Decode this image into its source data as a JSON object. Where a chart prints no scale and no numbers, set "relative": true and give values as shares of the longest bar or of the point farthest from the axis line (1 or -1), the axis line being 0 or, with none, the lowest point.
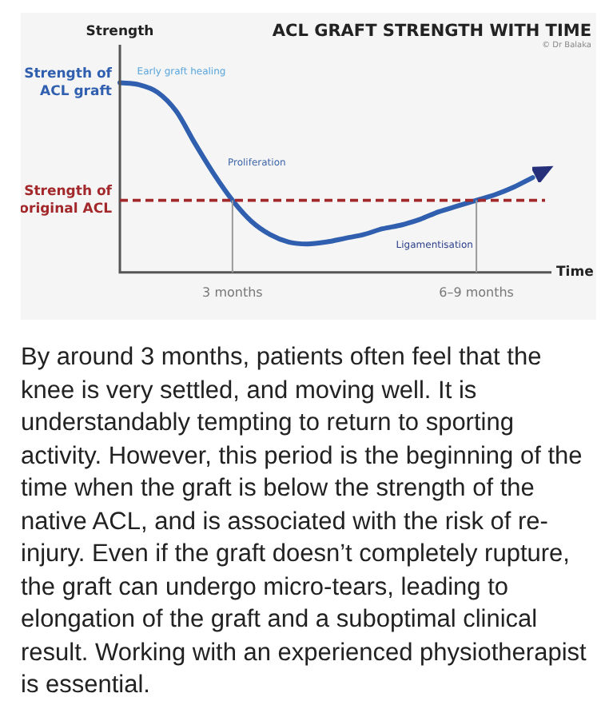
{
  "chart_data": {
    "type": "line",
    "title": "ACL GRAFT STRENGTH WITH TIME",
    "xlabel": "Time",
    "ylabel": "Strength",
    "relative": true,
    "tick_labels": "x",
    "legend": false,
    "grid": false,
    "marker": "none",
    "line_style": "solid",
    "categories": [
      null,
      null,
      null,
      null,
      null,
      null,
      "3 months",
      null,
      null,
      null,
      null,
      null,
      null,
      null,
      null,
      null,
      null,
      null,
      null,
      "6–9 months",
      null,
      null,
      null,
      null
    ],
    "series": [
      {
        "color": "#2f5fae",
        "values": [
          1.0,
          0.99,
          0.95,
          0.85,
          0.68,
          0.52,
          0.38,
          0.27,
          0.2,
          0.16,
          0.15,
          0.16,
          0.18,
          0.2,
          0.23,
          0.25,
          0.28,
          0.32,
          0.35,
          0.38,
          0.41,
          0.45,
          0.5,
          null
        ]
      }
    ],
    "ref_lines": [
      {
        "axis": "y",
        "value": 0.38,
        "label": "Strength of original ACL",
        "color": "#a3282b",
        "line_style": "dashed"
      },
      {
        "axis": "x",
        "value": "3 months",
        "color": "#9a9a9a"
      },
      {
        "axis": "x",
        "value": "6–9 months",
        "color": "#9a9a9a"
      }
    ],
    "annotations": [
      "Strength of ACL graft",
      "© Dr Balaka",
      "Early graft healing",
      "Proliferation",
      "Ligamentisation",
      "By around 3 months, patients often feel that the knee is very settled, and moving well. It is understandably tempting to return to sporting activity. However, this period is the beginning of the time when the graft is below the strength of the native ACL, and is associated with the risk of re-injury. Even if the graft doesn’t completely rupture, the graft can undergo micro-tears, leading to elongation of the graft and a suboptimal clinical result. Working with an experienced physiotherapist is essential."
    ]
  }
}
